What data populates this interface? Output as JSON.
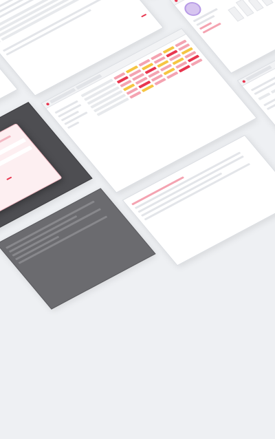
{
  "tiles": {
    "rows": {
      "r1": [
        "p",
        "y",
        "p",
        "p",
        "y",
        "p"
      ],
      "r2": [
        "r",
        "p",
        "y",
        "p",
        "r",
        "p"
      ],
      "r3": [
        "p",
        "p",
        "r",
        "y",
        "p",
        "y"
      ],
      "r4": [
        "y",
        "p",
        "p",
        "p",
        "y",
        "p"
      ],
      "r5": [
        "p",
        "r",
        "p",
        "y",
        "p",
        "r"
      ],
      "r6": [
        "p",
        "y",
        "p",
        "p",
        "r",
        "p"
      ]
    }
  },
  "colors": {
    "accent": "#e8364f",
    "soft": "#fde9ec",
    "warning": "#f5c543",
    "background": "#eef0f3"
  },
  "icons": [
    "avatar-icon",
    "browser-dot-icon"
  ]
}
